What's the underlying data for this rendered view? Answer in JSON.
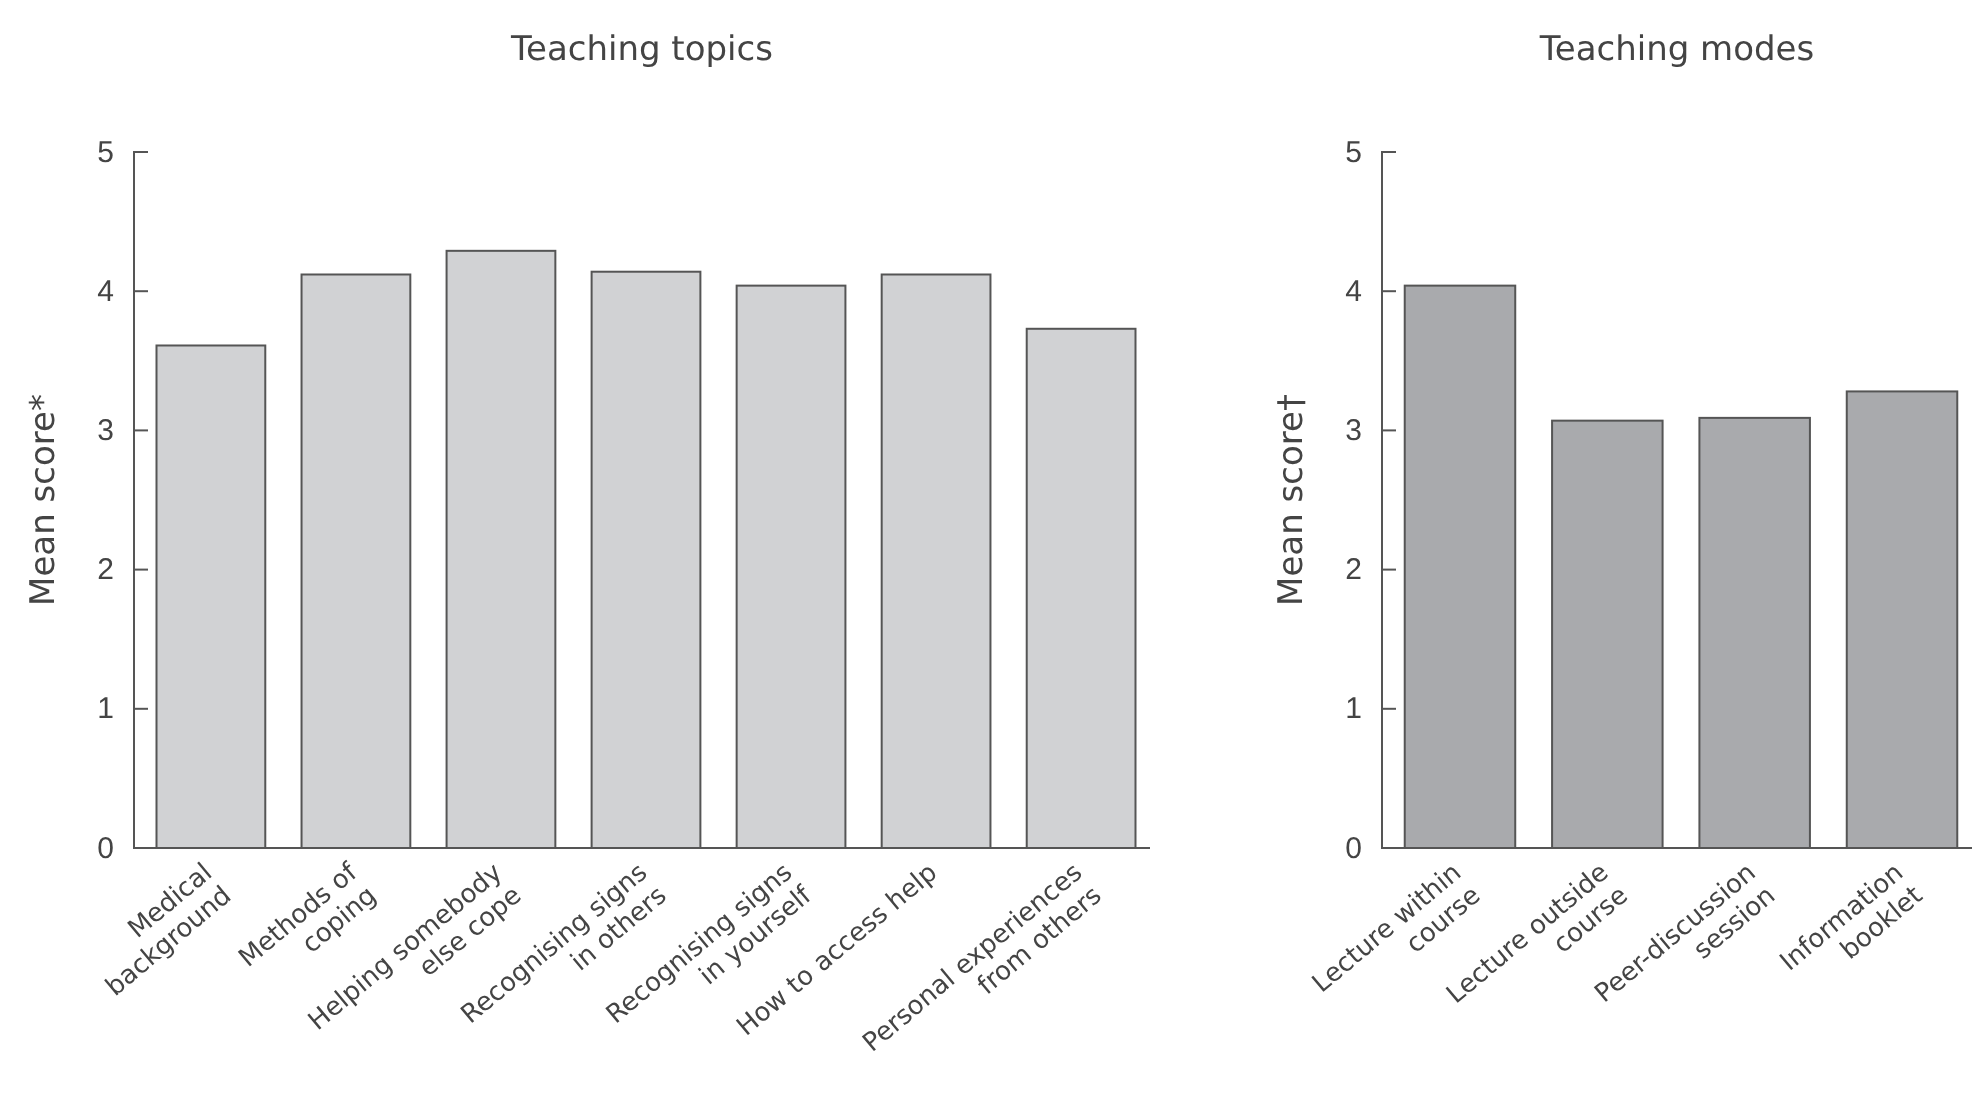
{
  "chart_data": [
    {
      "type": "bar",
      "title": "Teaching topics",
      "ylabel": "Mean score*",
      "categories": [
        "Medical\nbackground",
        "Methods of\ncoping",
        "Helping somebody\nelse cope",
        "Recognising signs\nin others",
        "Recognising signs\nin yourself",
        "How to access help",
        "Personal experiences\nfrom others"
      ],
      "values": [
        3.61,
        4.12,
        4.29,
        4.14,
        4.04,
        4.12,
        3.73
      ],
      "color": "#d1d2d4",
      "ylim": [
        0,
        5
      ],
      "yticks": [
        0,
        1,
        2,
        3,
        4,
        5
      ],
      "grid": false,
      "legend": false
    },
    {
      "type": "bar",
      "title": "Teaching modes",
      "ylabel": "Mean score†",
      "categories": [
        "Lecture within\ncourse",
        "Lecture outside\ncourse",
        "Peer-discussion\nsession",
        "Information\nbooklet"
      ],
      "values": [
        4.04,
        3.07,
        3.09,
        3.28
      ],
      "color": "#a9aaad",
      "ylim": [
        0,
        5
      ],
      "yticks": [
        0,
        1,
        2,
        3,
        4,
        5
      ],
      "grid": false,
      "legend": false
    }
  ]
}
